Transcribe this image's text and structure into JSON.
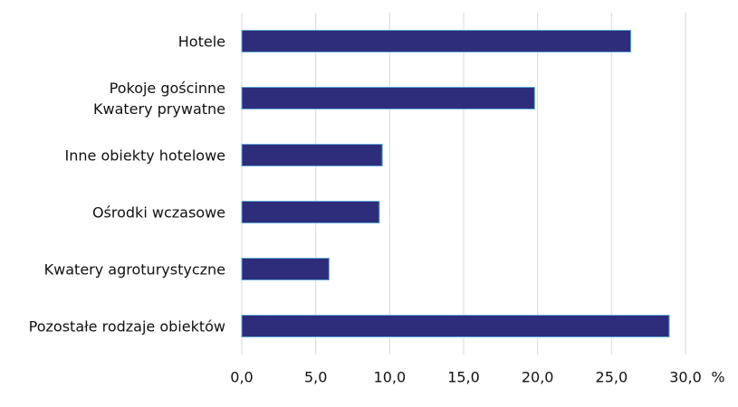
{
  "chart_data": {
    "type": "bar",
    "orientation": "horizontal",
    "categories": [
      "Hotele",
      "Pokoje gościnne\nKwatery prywatne",
      "Inne obiekty hotelowe",
      "Ośrodki wczasowe",
      "Kwatery agroturystyczne",
      "Pozostałe rodzaje obiektów"
    ],
    "values": [
      26.3,
      19.8,
      9.5,
      9.3,
      5.9,
      28.9
    ],
    "color": "#2e2d7c",
    "x_label": "%",
    "xlim": [
      0,
      30
    ],
    "xticks": [
      {
        "value": 0,
        "label": "0,0"
      },
      {
        "value": 5,
        "label": "5,0"
      },
      {
        "value": 10,
        "label": "10,0"
      },
      {
        "value": 15,
        "label": "15,0"
      },
      {
        "value": 20,
        "label": "20,0"
      },
      {
        "value": 25,
        "label": "25,0"
      },
      {
        "value": 30,
        "label": "30,0"
      }
    ],
    "grid": true
  }
}
